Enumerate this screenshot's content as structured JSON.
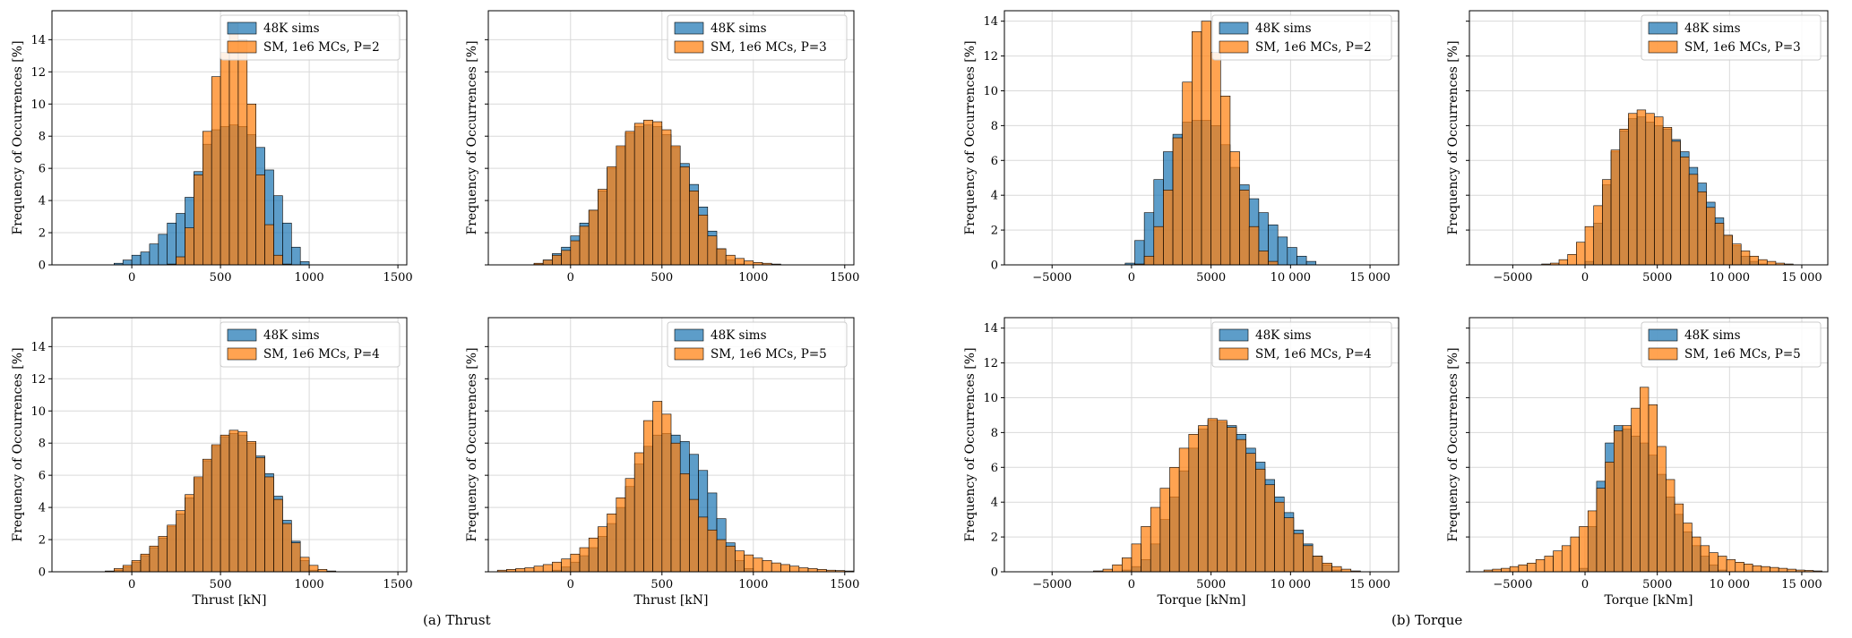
{
  "colors": {
    "sims": "#1f77b4",
    "sm": "#ff7f0e",
    "grid": "#d9d9d9",
    "edge": "#000000"
  },
  "captions": {
    "thrust": "(a) Thrust",
    "torque": "(b) Torque"
  },
  "chart_data": [
    {
      "type": "bar",
      "group": "thrust",
      "ylabel": "Frequency of Occurrences [%]",
      "xlabel": "",
      "xlim": [
        -450,
        1550
      ],
      "ylim": [
        0,
        15.8
      ],
      "xticks": [
        0,
        500,
        1000,
        1500
      ],
      "xtick_labels": [
        "0",
        "500",
        "1000",
        "1500"
      ],
      "yticks": [
        0,
        2,
        4,
        6,
        8,
        10,
        12,
        14
      ],
      "ytick_labels": [
        "0",
        "2",
        "4",
        "6",
        "8",
        "10",
        "12",
        "14"
      ],
      "show_ytick_labels": true,
      "legend": [
        "48K sims",
        "SM, 1e6 MCs, P=2"
      ],
      "bin_start": -200,
      "bin_width": 50,
      "series": [
        {
          "name": "48K sims",
          "values": [
            0,
            0,
            0.1,
            0.3,
            0.6,
            0.8,
            1.3,
            1.9,
            2.6,
            3.2,
            4.2,
            5.8,
            7.5,
            8.4,
            8.6,
            8.7,
            8.6,
            8.1,
            7.3,
            5.9,
            4.3,
            2.6,
            1.1,
            0.2
          ]
        },
        {
          "name": "SM, 1e6 MCs, P=2",
          "values": [
            0,
            0,
            0,
            0,
            0,
            0,
            0,
            0,
            0.05,
            0.5,
            2.3,
            5.6,
            8.3,
            11.7,
            13.2,
            15.0,
            14.0,
            10.0,
            5.6,
            2.5,
            0.6,
            0.05,
            0,
            0
          ]
        }
      ]
    },
    {
      "type": "bar",
      "group": "thrust",
      "ylabel": "Frequency of Occurrences [%]",
      "xlabel": "",
      "xlim": [
        -450,
        1550
      ],
      "ylim": [
        0,
        15.8
      ],
      "xticks": [
        0,
        500,
        1000,
        1500
      ],
      "xtick_labels": [
        "0",
        "500",
        "1000",
        "1500"
      ],
      "yticks": [
        0,
        2,
        4,
        6,
        8,
        10,
        12,
        14
      ],
      "ytick_labels": [
        "0",
        "2",
        "4",
        "6",
        "8",
        "10",
        "12",
        "14"
      ],
      "show_ytick_labels": false,
      "legend": [
        "48K sims",
        "SM, 1e6 MCs, P=3"
      ],
      "bin_start": -350,
      "bin_width": 50,
      "series": [
        {
          "name": "48K sims",
          "values": [
            0,
            0,
            0,
            0.05,
            0.3,
            0.7,
            1.1,
            1.8,
            2.6,
            3.4,
            4.6,
            6.0,
            7.3,
            8.2,
            8.6,
            8.7,
            8.6,
            8.1,
            7.3,
            6.3,
            5.0,
            3.6,
            2.1,
            1.0,
            0.3,
            0.05,
            0,
            0,
            0,
            0,
            0,
            0,
            0,
            0,
            0,
            0,
            0,
            0
          ]
        },
        {
          "name": "SM, 1e6 MCs, P=3",
          "values": [
            0,
            0,
            0,
            0.1,
            0.3,
            0.6,
            0.9,
            1.5,
            2.4,
            3.4,
            4.7,
            6.1,
            7.4,
            8.3,
            8.8,
            9.0,
            8.9,
            8.4,
            7.4,
            6.1,
            4.6,
            3.1,
            1.8,
            1.0,
            0.6,
            0.4,
            0.25,
            0.15,
            0.1,
            0.05,
            0,
            0,
            0,
            0,
            0,
            0,
            0,
            0
          ]
        }
      ]
    },
    {
      "type": "bar",
      "group": "thrust",
      "ylabel": "Frequency of Occurrences [%]",
      "xlabel": "Thrust [kN]",
      "xlim": [
        -450,
        1550
      ],
      "ylim": [
        0,
        15.8
      ],
      "xticks": [
        0,
        500,
        1000,
        1500
      ],
      "xtick_labels": [
        "0",
        "500",
        "1000",
        "1500"
      ],
      "yticks": [
        0,
        2,
        4,
        6,
        8,
        10,
        12,
        14
      ],
      "ytick_labels": [
        "0",
        "2",
        "4",
        "6",
        "8",
        "10",
        "12",
        "14"
      ],
      "show_ytick_labels": true,
      "legend": [
        "48K sims",
        "SM, 1e6 MCs, P=4"
      ],
      "bin_start": -200,
      "bin_width": 50,
      "series": [
        {
          "name": "48K sims",
          "values": [
            0,
            0,
            0.1,
            0.3,
            0.6,
            1.0,
            1.5,
            2.1,
            2.8,
            3.6,
            4.6,
            5.8,
            6.9,
            7.8,
            8.4,
            8.6,
            8.5,
            8.0,
            7.2,
            6.1,
            4.7,
            3.2,
            1.9,
            0.7,
            0.1,
            0,
            0,
            0,
            0,
            0,
            0,
            0,
            0,
            0
          ]
        },
        {
          "name": "SM, 1e6 MCs, P=4",
          "values": [
            0,
            0.05,
            0.2,
            0.4,
            0.7,
            1.1,
            1.6,
            2.2,
            2.9,
            3.8,
            4.8,
            5.9,
            7.0,
            7.9,
            8.5,
            8.8,
            8.7,
            8.1,
            7.1,
            5.9,
            4.5,
            3.0,
            1.8,
            0.9,
            0.4,
            0.15,
            0.05,
            0,
            0,
            0,
            0,
            0,
            0,
            0
          ]
        }
      ]
    },
    {
      "type": "bar",
      "group": "thrust",
      "ylabel": "Frequency of Occurrences [%]",
      "xlabel": "Thrust [kN]",
      "xlim": [
        -450,
        1550
      ],
      "ylim": [
        0,
        15.8
      ],
      "xticks": [
        0,
        500,
        1000,
        1500
      ],
      "xtick_labels": [
        "0",
        "500",
        "1000",
        "1500"
      ],
      "yticks": [
        0,
        2,
        4,
        6,
        8,
        10,
        12,
        14
      ],
      "ytick_labels": [
        "0",
        "2",
        "4",
        "6",
        "8",
        "10",
        "12",
        "14"
      ],
      "show_ytick_labels": false,
      "legend": [
        "48K sims",
        "SM, 1e6 MCs, P=5"
      ],
      "bin_start": -400,
      "bin_width": 50,
      "series": [
        {
          "name": "48K sims",
          "values": [
            0,
            0,
            0,
            0,
            0,
            0,
            0.1,
            0.3,
            0.6,
            1.0,
            1.5,
            2.2,
            3.0,
            4.0,
            5.3,
            6.7,
            7.8,
            8.5,
            8.6,
            8.5,
            8.1,
            7.3,
            6.3,
            4.9,
            3.3,
            1.8,
            0.7,
            0.2,
            0,
            0,
            0,
            0,
            0,
            0,
            0,
            0,
            0,
            0,
            0,
            0
          ]
        },
        {
          "name": "SM, 1e6 MCs, P=5",
          "values": [
            0.1,
            0.15,
            0.2,
            0.25,
            0.35,
            0.45,
            0.6,
            0.8,
            1.1,
            1.5,
            2.1,
            2.8,
            3.6,
            4.6,
            5.8,
            7.4,
            9.4,
            10.6,
            9.8,
            8.0,
            6.1,
            4.5,
            3.4,
            2.6,
            2.0,
            1.6,
            1.3,
            1.05,
            0.85,
            0.7,
            0.55,
            0.45,
            0.35,
            0.25,
            0.2,
            0.15,
            0.1,
            0.08,
            0.05,
            0
          ]
        }
      ]
    },
    {
      "type": "bar",
      "group": "torque",
      "ylabel": "Frequency of Occurrences [%]",
      "xlabel": "",
      "xlim": [
        -8000,
        16800
      ],
      "ylim": [
        0,
        14.6
      ],
      "xticks": [
        -5000,
        0,
        5000,
        10000,
        15000
      ],
      "xtick_labels": [
        "−5000",
        "0",
        "5000",
        "10 000",
        "15 000"
      ],
      "yticks": [
        0,
        2,
        4,
        6,
        8,
        10,
        12,
        14
      ],
      "ytick_labels": [
        "0",
        "2",
        "4",
        "6",
        "8",
        "10",
        "12",
        "14"
      ],
      "show_ytick_labels": true,
      "legend": [
        "48K sims",
        "SM, 1e6 MCs, P=2"
      ],
      "bin_start": -1000,
      "bin_width": 600,
      "series": [
        {
          "name": "48K sims",
          "values": [
            0,
            0.1,
            1.4,
            3.0,
            4.9,
            6.5,
            7.5,
            8.2,
            8.3,
            8.3,
            8.0,
            6.9,
            5.6,
            4.6,
            3.8,
            3.0,
            2.3,
            1.6,
            1.0,
            0.5,
            0.2,
            0
          ]
        },
        {
          "name": "SM, 1e6 MCs, P=2",
          "values": [
            0,
            0,
            0.05,
            0.5,
            2.2,
            4.3,
            7.3,
            10.5,
            13.4,
            14.0,
            12.2,
            9.7,
            6.5,
            4.3,
            2.2,
            0.8,
            0.2,
            0,
            0,
            0,
            0,
            0
          ]
        }
      ]
    },
    {
      "type": "bar",
      "group": "torque",
      "ylabel": "Frequency of Occurrences [%]",
      "xlabel": "",
      "xlim": [
        -8000,
        16800
      ],
      "ylim": [
        0,
        14.6
      ],
      "xticks": [
        -5000,
        0,
        5000,
        10000,
        15000
      ],
      "xtick_labels": [
        "−5000",
        "0",
        "5000",
        "10 000",
        "15 000"
      ],
      "yticks": [
        0,
        2,
        4,
        6,
        8,
        10,
        12,
        14
      ],
      "ytick_labels": [
        "0",
        "2",
        "4",
        "6",
        "8",
        "10",
        "12",
        "14"
      ],
      "show_ytick_labels": false,
      "legend": [
        "48K sims",
        "SM, 1e6 MCs, P=3"
      ],
      "bin_start": -3000,
      "bin_width": 600,
      "series": [
        {
          "name": "48K sims",
          "values": [
            0,
            0,
            0,
            0,
            0,
            0.2,
            2.4,
            4.6,
            6.5,
            7.7,
            8.4,
            8.5,
            8.2,
            8.0,
            7.8,
            7.2,
            6.5,
            5.6,
            4.7,
            3.6,
            2.7,
            1.7,
            1.1,
            0.5,
            0.2,
            0.05,
            0,
            0,
            0,
            0,
            0,
            0,
            0
          ]
        },
        {
          "name": "SM, 1e6 MCs, P=3",
          "values": [
            0.05,
            0.1,
            0.3,
            0.6,
            1.3,
            2.2,
            3.4,
            4.9,
            6.6,
            7.8,
            8.7,
            8.9,
            8.7,
            8.5,
            7.9,
            7.1,
            6.2,
            5.2,
            4.2,
            3.3,
            2.4,
            1.7,
            1.2,
            0.8,
            0.5,
            0.3,
            0.2,
            0.1,
            0.05,
            0,
            0,
            0,
            0
          ]
        }
      ]
    },
    {
      "type": "bar",
      "group": "torque",
      "ylabel": "Frequency of Occurrences [%]",
      "xlabel": "Torque [kNm]",
      "xlim": [
        -8000,
        16800
      ],
      "ylim": [
        0,
        14.6
      ],
      "xticks": [
        -5000,
        0,
        5000,
        10000,
        15000
      ],
      "xtick_labels": [
        "−5000",
        "0",
        "5000",
        "10 000",
        "15 000"
      ],
      "yticks": [
        0,
        2,
        4,
        6,
        8,
        10,
        12,
        14
      ],
      "ytick_labels": [
        "0",
        "2",
        "4",
        "6",
        "8",
        "10",
        "12",
        "14"
      ],
      "show_ytick_labels": true,
      "legend": [
        "48K sims",
        "SM, 1e6 MCs, P=4"
      ],
      "bin_start": -3000,
      "bin_width": 600,
      "series": [
        {
          "name": "48K sims",
          "values": [
            0,
            0,
            0,
            0,
            0.1,
            0.3,
            0.7,
            1.6,
            3.0,
            4.3,
            5.8,
            7.1,
            8.2,
            8.7,
            8.6,
            8.4,
            7.9,
            7.1,
            6.3,
            5.3,
            4.3,
            3.4,
            2.4,
            1.6,
            0.9,
            0.4,
            0.1,
            0,
            0,
            0,
            0,
            0,
            0
          ]
        },
        {
          "name": "SM, 1e6 MCs, P=4",
          "values": [
            0,
            0.05,
            0.15,
            0.4,
            0.8,
            1.6,
            2.6,
            3.7,
            4.8,
            6.0,
            7.1,
            7.9,
            8.4,
            8.8,
            8.7,
            8.3,
            7.6,
            6.8,
            5.9,
            5.0,
            4.0,
            3.1,
            2.2,
            1.5,
            0.9,
            0.5,
            0.3,
            0.15,
            0.05,
            0,
            0,
            0,
            0
          ]
        }
      ]
    },
    {
      "type": "bar",
      "group": "torque",
      "ylabel": "Frequency of Occurrences [%]",
      "xlabel": "Torque [kNm]",
      "xlim": [
        -8000,
        16800
      ],
      "ylim": [
        0,
        14.6
      ],
      "xticks": [
        -5000,
        0,
        5000,
        10000,
        15000
      ],
      "xtick_labels": [
        "−5000",
        "0",
        "5000",
        "10 000",
        "15 000"
      ],
      "yticks": [
        0,
        2,
        4,
        6,
        8,
        10,
        12,
        14
      ],
      "ytick_labels": [
        "0",
        "2",
        "4",
        "6",
        "8",
        "10",
        "12",
        "14"
      ],
      "show_ytick_labels": false,
      "legend": [
        "48K sims",
        "SM, 1e6 MCs, P=5"
      ],
      "bin_start": -7000,
      "bin_width": 600,
      "series": [
        {
          "name": "48K sims",
          "values": [
            0,
            0,
            0,
            0,
            0,
            0,
            0,
            0,
            0,
            0,
            0,
            0.2,
            2.6,
            5.2,
            7.4,
            8.4,
            8.2,
            7.8,
            7.4,
            6.7,
            5.6,
            4.3,
            3.3,
            2.3,
            1.5,
            0.9,
            0.4,
            0.1,
            0,
            0,
            0,
            0,
            0,
            0,
            0,
            0,
            0,
            0,
            0,
            0
          ]
        },
        {
          "name": "SM, 1e6 MCs, P=5",
          "values": [
            0.1,
            0.15,
            0.2,
            0.3,
            0.4,
            0.5,
            0.7,
            0.9,
            1.2,
            1.5,
            2.0,
            2.6,
            3.5,
            4.8,
            6.3,
            8.1,
            8.4,
            9.4,
            10.6,
            9.6,
            7.2,
            5.3,
            3.9,
            2.8,
            2.0,
            1.5,
            1.1,
            0.9,
            0.7,
            0.55,
            0.45,
            0.35,
            0.3,
            0.25,
            0.2,
            0.15,
            0.1,
            0.08,
            0.05,
            0
          ]
        }
      ]
    }
  ]
}
